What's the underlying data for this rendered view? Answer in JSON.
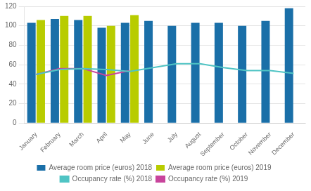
{
  "chart_data": {
    "type": "bar",
    "categories": [
      "January",
      "February",
      "March",
      "April",
      "May",
      "June",
      "July",
      "August",
      "September",
      "October",
      "November",
      "December"
    ],
    "series": [
      {
        "name": "Average room price (euros) 2018",
        "type": "bar",
        "color": "#1a6fa8",
        "values": [
          103,
          107,
          106,
          98,
          103,
          105,
          100,
          103,
          103,
          100,
          105,
          118
        ]
      },
      {
        "name": "Average room price (euros) 2019",
        "type": "bar",
        "color": "#b8cc00",
        "values": [
          106,
          110,
          110,
          100,
          111,
          null,
          null,
          null,
          null,
          null,
          null,
          null
        ]
      },
      {
        "name": "Occupancy rate (%) 2018",
        "type": "line",
        "color": "#4fc4c4",
        "values": [
          50,
          55,
          56,
          55,
          53,
          57,
          61,
          61,
          57,
          54,
          54,
          51
        ]
      },
      {
        "name": "Occupancy rate (%) 2019",
        "type": "line",
        "color": "#c8449c",
        "values": [
          50,
          56,
          56,
          49,
          54,
          null,
          null,
          null,
          null,
          null,
          null,
          null
        ]
      }
    ],
    "ylim": [
      0,
      120
    ],
    "yticks": [
      0,
      20,
      40,
      60,
      80,
      100,
      120
    ],
    "grid": true,
    "legend": "bottom"
  }
}
